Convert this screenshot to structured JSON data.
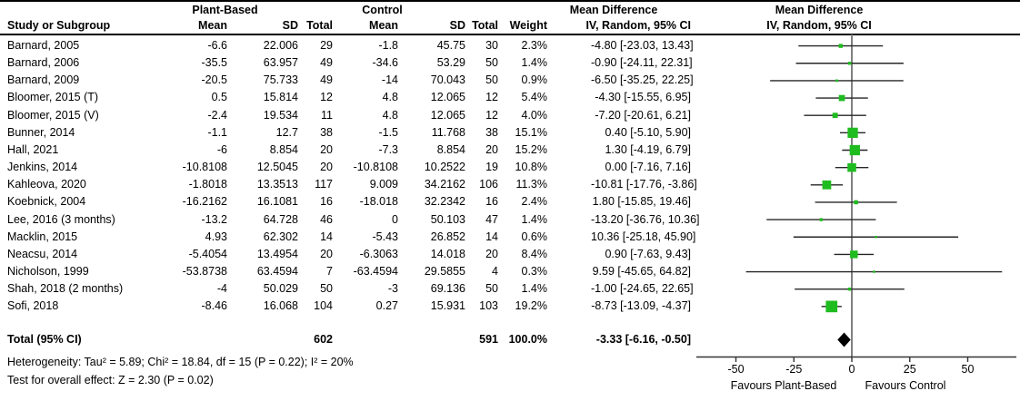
{
  "header": {
    "group_plant": "Plant-Based",
    "group_control": "Control",
    "md_title_text_col": "Mean Difference",
    "md_title_plot_col": "Mean Difference",
    "study": "Study or Subgroup",
    "mean_plant": "Mean",
    "sd_plant": "SD",
    "total_plant": "Total",
    "mean_control": "Mean",
    "sd_control": "SD",
    "total_control": "Total",
    "weight": "Weight",
    "ci_text_col": "IV, Random, 95% CI",
    "ci_plot_col": "IV, Random, 95% CI"
  },
  "table": {
    "rows": [
      {
        "study": "Barnard, 2005",
        "p_mean": "-6.6",
        "p_sd": "22.006",
        "p_total": "29",
        "c_mean": "-1.8",
        "c_sd": "45.75",
        "c_total": "30",
        "weight": "2.3%",
        "ci": "-4.80 [-23.03, 13.43]"
      },
      {
        "study": "Barnard, 2006",
        "p_mean": "-35.5",
        "p_sd": "63.957",
        "p_total": "49",
        "c_mean": "-34.6",
        "c_sd": "53.29",
        "c_total": "50",
        "weight": "1.4%",
        "ci": "-0.90 [-24.11, 22.31]"
      },
      {
        "study": "Barnard, 2009",
        "p_mean": "-20.5",
        "p_sd": "75.733",
        "p_total": "49",
        "c_mean": "-14",
        "c_sd": "70.043",
        "c_total": "50",
        "weight": "0.9%",
        "ci": "-6.50 [-35.25, 22.25]"
      },
      {
        "study": "Bloomer, 2015 (T)",
        "p_mean": "0.5",
        "p_sd": "15.814",
        "p_total": "12",
        "c_mean": "4.8",
        "c_sd": "12.065",
        "c_total": "12",
        "weight": "5.4%",
        "ci": "-4.30 [-15.55, 6.95]"
      },
      {
        "study": "Bloomer, 2015 (V)",
        "p_mean": "-2.4",
        "p_sd": "19.534",
        "p_total": "11",
        "c_mean": "4.8",
        "c_sd": "12.065",
        "c_total": "12",
        "weight": "4.0%",
        "ci": "-7.20 [-20.61, 6.21]"
      },
      {
        "study": "Bunner, 2014",
        "p_mean": "-1.1",
        "p_sd": "12.7",
        "p_total": "38",
        "c_mean": "-1.5",
        "c_sd": "11.768",
        "c_total": "38",
        "weight": "15.1%",
        "ci": "0.40 [-5.10, 5.90]"
      },
      {
        "study": "Hall, 2021",
        "p_mean": "-6",
        "p_sd": "8.854",
        "p_total": "20",
        "c_mean": "-7.3",
        "c_sd": "8.854",
        "c_total": "20",
        "weight": "15.2%",
        "ci": "1.30 [-4.19, 6.79]"
      },
      {
        "study": "Jenkins, 2014",
        "p_mean": "-10.8108",
        "p_sd": "12.5045",
        "p_total": "20",
        "c_mean": "-10.8108",
        "c_sd": "10.2522",
        "c_total": "19",
        "weight": "10.8%",
        "ci": "0.00 [-7.16, 7.16]"
      },
      {
        "study": "Kahleova, 2020",
        "p_mean": "-1.8018",
        "p_sd": "13.3513",
        "p_total": "117",
        "c_mean": "9.009",
        "c_sd": "34.2162",
        "c_total": "106",
        "weight": "11.3%",
        "ci": "-10.81 [-17.76, -3.86]"
      },
      {
        "study": "Koebnick, 2004",
        "p_mean": "-16.2162",
        "p_sd": "16.1081",
        "p_total": "16",
        "c_mean": "-18.018",
        "c_sd": "32.2342",
        "c_total": "16",
        "weight": "2.4%",
        "ci": "1.80 [-15.85, 19.46]"
      },
      {
        "study": "Lee, 2016 (3 months)",
        "p_mean": "-13.2",
        "p_sd": "64.728",
        "p_total": "46",
        "c_mean": "0",
        "c_sd": "50.103",
        "c_total": "47",
        "weight": "1.4%",
        "ci": "-13.20 [-36.76, 10.36]"
      },
      {
        "study": "Macklin, 2015",
        "p_mean": "4.93",
        "p_sd": "62.302",
        "p_total": "14",
        "c_mean": "-5.43",
        "c_sd": "26.852",
        "c_total": "14",
        "weight": "0.6%",
        "ci": "10.36 [-25.18, 45.90]"
      },
      {
        "study": "Neacsu, 2014",
        "p_mean": "-5.4054",
        "p_sd": "13.4954",
        "p_total": "20",
        "c_mean": "-6.3063",
        "c_sd": "14.018",
        "c_total": "20",
        "weight": "8.4%",
        "ci": "0.90 [-7.63, 9.43]"
      },
      {
        "study": "Nicholson, 1999",
        "p_mean": "-53.8738",
        "p_sd": "63.4594",
        "p_total": "7",
        "c_mean": "-63.4594",
        "c_sd": "29.5855",
        "c_total": "4",
        "weight": "0.3%",
        "ci": "9.59 [-45.65, 64.82]"
      },
      {
        "study": "Shah, 2018 (2 months)",
        "p_mean": "-4",
        "p_sd": "50.029",
        "p_total": "50",
        "c_mean": "-3",
        "c_sd": "69.136",
        "c_total": "50",
        "weight": "1.4%",
        "ci": "-1.00 [-24.65, 22.65]"
      },
      {
        "study": "Sofi, 2018",
        "p_mean": "-8.46",
        "p_sd": "16.068",
        "p_total": "104",
        "c_mean": "0.27",
        "c_sd": "15.931",
        "c_total": "103",
        "weight": "19.2%",
        "ci": "-8.73 [-13.09, -4.37]"
      }
    ],
    "total_row": {
      "label": "Total (95% CI)",
      "p_total": "602",
      "c_total": "591",
      "weight": "100.0%",
      "ci": "-3.33 [-6.16, -0.50]"
    }
  },
  "footer": {
    "heterogeneity": "Heterogeneity: Tau² = 5.89; Chi² = 18.84, df = 15 (P = 0.22); I² = 20%",
    "overall_effect": "Test for overall effect: Z = 2.30 (P = 0.02)"
  },
  "chart_data": {
    "type": "forest",
    "title": "Mean Difference IV, Random, 95% CI",
    "x_ticks": [
      -50,
      -25,
      0,
      25,
      50
    ],
    "x_range": [
      -66,
      70
    ],
    "zero_line_x": 0,
    "axis_label_left": "Favours Plant-Based",
    "axis_label_right": "Favours Control",
    "marker_color": "#1fbc1f",
    "ci_line_color": "#262626",
    "zero_line_color": "#808080",
    "axis_color": "#333333",
    "diamond_color": "#000000",
    "studies": [
      {
        "name": "Barnard, 2005",
        "md": -4.8,
        "lo": -23.03,
        "hi": 13.43,
        "weight": 2.3
      },
      {
        "name": "Barnard, 2006",
        "md": -0.9,
        "lo": -24.11,
        "hi": 22.31,
        "weight": 1.4
      },
      {
        "name": "Barnard, 2009",
        "md": -6.5,
        "lo": -35.25,
        "hi": 22.25,
        "weight": 0.9
      },
      {
        "name": "Bloomer, 2015 (T)",
        "md": -4.3,
        "lo": -15.55,
        "hi": 6.95,
        "weight": 5.4
      },
      {
        "name": "Bloomer, 2015 (V)",
        "md": -7.2,
        "lo": -20.61,
        "hi": 6.21,
        "weight": 4.0
      },
      {
        "name": "Bunner, 2014",
        "md": 0.4,
        "lo": -5.1,
        "hi": 5.9,
        "weight": 15.1
      },
      {
        "name": "Hall, 2021",
        "md": 1.3,
        "lo": -4.19,
        "hi": 6.79,
        "weight": 15.2
      },
      {
        "name": "Jenkins, 2014",
        "md": 0.0,
        "lo": -7.16,
        "hi": 7.16,
        "weight": 10.8
      },
      {
        "name": "Kahleova, 2020",
        "md": -10.81,
        "lo": -17.76,
        "hi": -3.86,
        "weight": 11.3
      },
      {
        "name": "Koebnick, 2004",
        "md": 1.8,
        "lo": -15.85,
        "hi": 19.46,
        "weight": 2.4
      },
      {
        "name": "Lee, 2016 (3 months)",
        "md": -13.2,
        "lo": -36.76,
        "hi": 10.36,
        "weight": 1.4
      },
      {
        "name": "Macklin, 2015",
        "md": 10.36,
        "lo": -25.18,
        "hi": 45.9,
        "weight": 0.6
      },
      {
        "name": "Neacsu, 2014",
        "md": 0.9,
        "lo": -7.63,
        "hi": 9.43,
        "weight": 8.4
      },
      {
        "name": "Nicholson, 1999",
        "md": 9.59,
        "lo": -45.65,
        "hi": 64.82,
        "weight": 0.3
      },
      {
        "name": "Shah, 2018 (2 months)",
        "md": -1.0,
        "lo": -24.65,
        "hi": 22.65,
        "weight": 1.4
      },
      {
        "name": "Sofi, 2018",
        "md": -8.73,
        "lo": -13.09,
        "hi": -4.37,
        "weight": 19.2
      }
    ],
    "total": {
      "md": -3.33,
      "lo": -6.16,
      "hi": -0.5
    }
  }
}
